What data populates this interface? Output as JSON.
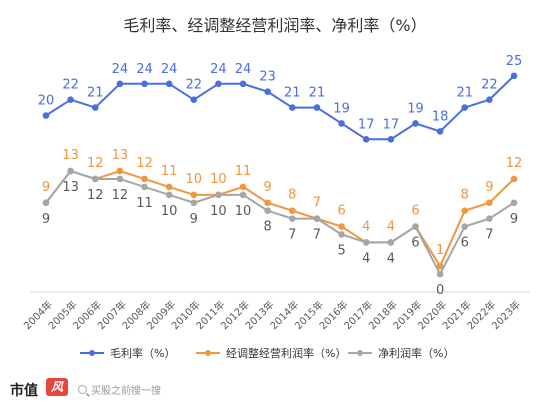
{
  "chart_data": {
    "type": "line",
    "title": "毛利率、经调整经营利润率、净利率（%）",
    "categories": [
      "2004年",
      "2005年",
      "2006年",
      "2007年",
      "2008年",
      "2009年",
      "2010年",
      "2011年",
      "2012年",
      "2013年",
      "2014年",
      "2015年",
      "2016年",
      "2017年",
      "2018年",
      "2019年",
      "2020年",
      "2021年",
      "2022年",
      "2023年"
    ],
    "ylim": [
      -2,
      27
    ],
    "grid": false,
    "legend_position": "bottom",
    "series": [
      {
        "name": "毛利率（%）",
        "color": "#4a6ee0",
        "values": [
          20,
          22,
          21,
          24,
          24,
          24,
          22,
          24,
          24,
          23,
          21,
          21,
          19,
          17,
          17,
          19,
          18,
          21,
          22,
          25
        ],
        "labels": [
          "20",
          "22",
          "21",
          "24",
          "24",
          "24",
          "22",
          "24",
          "24",
          "23",
          "21",
          "21",
          "19",
          "17",
          "17",
          "19",
          "18",
          "21",
          "22",
          "25"
        ]
      },
      {
        "name": "经调整经营利润率（%）",
        "color": "#f0963c",
        "values": [
          9,
          13,
          12,
          13,
          12,
          11,
          10,
          10,
          11,
          9,
          8,
          7,
          6,
          4,
          4,
          6,
          1,
          8,
          9,
          12
        ],
        "labels": [
          "9",
          "13",
          "12",
          "13",
          "12",
          "11",
          "10",
          "10",
          "11",
          "9",
          "8",
          "7",
          "6",
          "4",
          "4",
          "6",
          "1",
          "8",
          "9",
          "12"
        ]
      },
      {
        "name": "净利润率（%）",
        "color": "#a6a6a6",
        "values": [
          9,
          13,
          12,
          12,
          11,
          10,
          9,
          10,
          10,
          8,
          7,
          7,
          5,
          4,
          4,
          6,
          0,
          6,
          7,
          9
        ],
        "labels": [
          "9",
          "13",
          "12",
          "12",
          "11",
          "10",
          "9",
          "10",
          "10",
          "8",
          "7",
          "7",
          "5",
          "4",
          "4",
          "6",
          "0",
          "6",
          "7",
          "9"
        ]
      }
    ]
  },
  "footer": {
    "brand": "市值",
    "brand_mark": "风",
    "search_hint": "买股之前搜一搜"
  }
}
